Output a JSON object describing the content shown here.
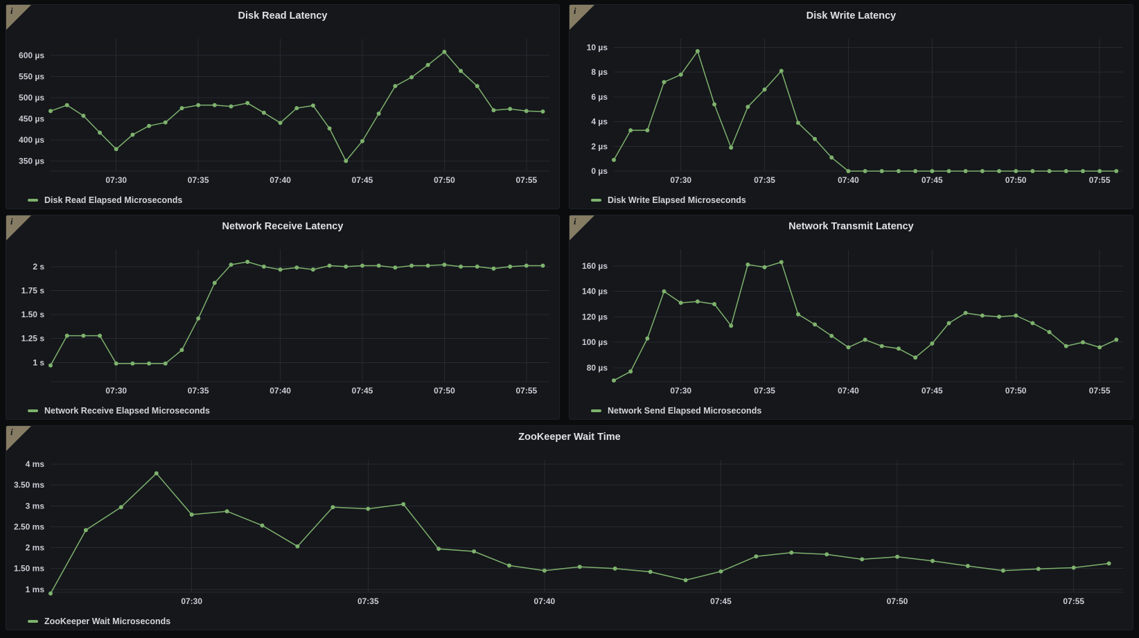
{
  "colors": {
    "accent": "#7EB26D",
    "info_corner": "#867C64"
  },
  "icons": {
    "info": "i"
  },
  "time_axis": {
    "times": [
      "07:26",
      "07:27",
      "07:28",
      "07:29",
      "07:30",
      "07:31",
      "07:32",
      "07:33",
      "07:34",
      "07:35",
      "07:36",
      "07:37",
      "07:38",
      "07:39",
      "07:40",
      "07:41",
      "07:42",
      "07:43",
      "07:44",
      "07:45",
      "07:46",
      "07:47",
      "07:48",
      "07:49",
      "07:50",
      "07:51",
      "07:52",
      "07:53",
      "07:54",
      "07:55",
      "07:56"
    ],
    "start_minute": 26,
    "xlim_minutes": [
      26,
      56.4
    ],
    "ticks": [
      {
        "minute": 30,
        "label": "07:30"
      },
      {
        "minute": 35,
        "label": "07:35"
      },
      {
        "minute": 40,
        "label": "07:40"
      },
      {
        "minute": 45,
        "label": "07:45"
      },
      {
        "minute": 50,
        "label": "07:50"
      },
      {
        "minute": 55,
        "label": "07:55"
      }
    ]
  },
  "chart_data": [
    {
      "id": "disk-read-latency",
      "type": "line",
      "title": "Disk Read Latency",
      "legend": "Disk Read Elapsed Microseconds",
      "unit": "µs",
      "grid": true,
      "legend_position": "bottom-left",
      "values": [
        468,
        482,
        457,
        417,
        378,
        412,
        433,
        441,
        475,
        482,
        482,
        479,
        487,
        464,
        440,
        475,
        481,
        427,
        350,
        397,
        462,
        527,
        548,
        577,
        608,
        563,
        527,
        470,
        473,
        468,
        467
      ],
      "ylim": [
        326,
        639
      ],
      "yticks": [
        {
          "value": 350,
          "label": "350 µs"
        },
        {
          "value": 400,
          "label": "400 µs"
        },
        {
          "value": 450,
          "label": "450 µs"
        },
        {
          "value": 500,
          "label": "500 µs"
        },
        {
          "value": 550,
          "label": "550 µs"
        },
        {
          "value": 600,
          "label": "600 µs"
        }
      ]
    },
    {
      "id": "disk-write-latency",
      "type": "line",
      "title": "Disk Write Latency",
      "legend": "Disk Write Elapsed Microseconds",
      "unit": "µs",
      "grid": true,
      "legend_position": "bottom-left",
      "values": [
        0.9,
        3.3,
        3.3,
        7.2,
        7.8,
        9.7,
        5.4,
        1.9,
        5.2,
        6.6,
        8.1,
        3.9,
        2.6,
        1.1,
        0,
        0,
        0,
        0,
        0,
        0,
        0,
        0,
        0,
        0,
        0,
        0,
        0,
        0,
        0,
        0,
        0
      ],
      "ylim": [
        0,
        10.7
      ],
      "yticks": [
        {
          "value": 0,
          "label": "0 µs"
        },
        {
          "value": 2,
          "label": "2 µs"
        },
        {
          "value": 4,
          "label": "4 µs"
        },
        {
          "value": 6,
          "label": "6 µs"
        },
        {
          "value": 8,
          "label": "8 µs"
        },
        {
          "value": 10,
          "label": "10 µs"
        }
      ]
    },
    {
      "id": "network-receive-latency",
      "type": "line",
      "title": "Network Receive Latency",
      "legend": "Network Receive Elapsed Microseconds",
      "unit": "s",
      "grid": true,
      "legend_position": "bottom-left",
      "values": [
        0.97,
        1.28,
        1.28,
        1.28,
        0.99,
        0.99,
        0.99,
        0.99,
        1.13,
        1.46,
        1.83,
        2.02,
        2.05,
        2.0,
        1.97,
        1.99,
        1.97,
        2.01,
        2.0,
        2.01,
        2.01,
        1.99,
        2.01,
        2.01,
        2.02,
        2.0,
        2.0,
        1.98,
        2.0,
        2.01,
        2.01
      ],
      "ylim": [
        0.8,
        2.18
      ],
      "yticks": [
        {
          "value": 1,
          "label": "1 s"
        },
        {
          "value": 1.25,
          "label": "1.25 s"
        },
        {
          "value": 1.5,
          "label": "1.50 s"
        },
        {
          "value": 1.75,
          "label": "1.75 s"
        },
        {
          "value": 2,
          "label": "2 s"
        }
      ]
    },
    {
      "id": "network-transmit-latency",
      "type": "line",
      "title": "Network Transmit Latency",
      "legend": "Network Send Elapsed Microseconds",
      "unit": "µs",
      "grid": true,
      "legend_position": "bottom-left",
      "values": [
        70,
        77,
        103,
        140,
        131,
        132,
        130,
        113,
        161,
        159,
        163,
        122,
        114,
        105,
        96,
        102,
        97,
        95,
        88,
        99,
        115,
        123,
        121,
        120,
        121,
        115,
        108,
        97,
        100,
        96,
        102
      ],
      "ylim": [
        69,
        173
      ],
      "yticks": [
        {
          "value": 80,
          "label": "80 µs"
        },
        {
          "value": 100,
          "label": "100 µs"
        },
        {
          "value": 120,
          "label": "120 µs"
        },
        {
          "value": 140,
          "label": "140 µs"
        },
        {
          "value": 160,
          "label": "160 µs"
        }
      ]
    },
    {
      "id": "zookeeper-wait-time",
      "type": "line",
      "title": "ZooKeeper Wait Time",
      "legend": "ZooKeeper Wait Microseconds",
      "unit": "ms",
      "grid": true,
      "legend_position": "bottom-left",
      "full_width": true,
      "values": [
        0.9,
        2.42,
        2.97,
        3.78,
        2.79,
        2.87,
        2.53,
        2.03,
        2.97,
        2.93,
        3.04,
        1.97,
        1.91,
        1.57,
        1.45,
        1.54,
        1.5,
        1.42,
        1.22,
        1.43,
        1.79,
        1.88,
        1.84,
        1.72,
        1.78,
        1.68,
        1.56,
        1.45,
        1.49,
        1.52,
        1.62
      ],
      "ylim": [
        0.93,
        4.1
      ],
      "yticks": [
        {
          "value": 1,
          "label": "1 ms"
        },
        {
          "value": 1.5,
          "label": "1.50 ms"
        },
        {
          "value": 2,
          "label": "2 ms"
        },
        {
          "value": 2.5,
          "label": "2.50 ms"
        },
        {
          "value": 3,
          "label": "3 ms"
        },
        {
          "value": 3.5,
          "label": "3.50 ms"
        },
        {
          "value": 4,
          "label": "4 ms"
        }
      ]
    }
  ]
}
